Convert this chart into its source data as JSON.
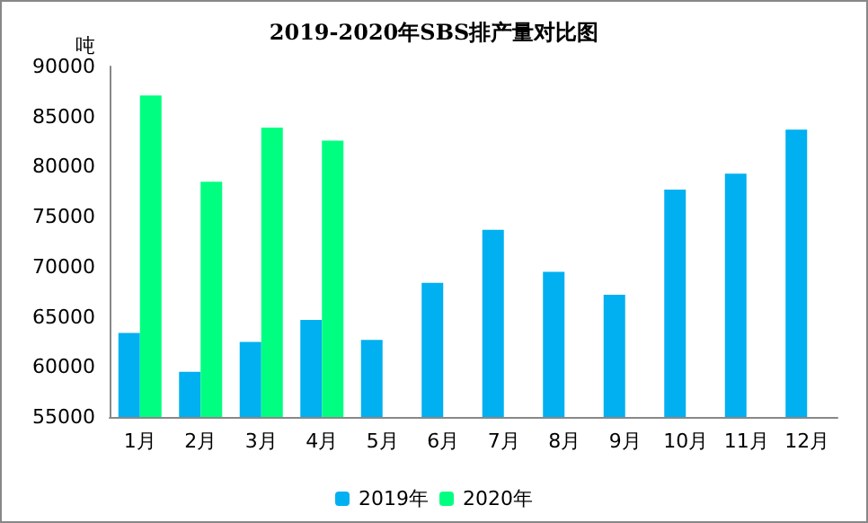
{
  "chart_data": {
    "type": "bar",
    "title": "2019-2020年SBS排产量对比图",
    "ylabel": "吨",
    "categories": [
      "1月",
      "2月",
      "3月",
      "4月",
      "5月",
      "6月",
      "7月",
      "8月",
      "9月",
      "10月",
      "11月",
      "12月"
    ],
    "series": [
      {
        "name": "2019年",
        "color": "#00b0f0",
        "values": [
          63400,
          59500,
          62500,
          64700,
          62700,
          68400,
          73700,
          69500,
          67200,
          77700,
          79300,
          83700
        ]
      },
      {
        "name": "2020年",
        "color": "#00ff80",
        "values": [
          87100,
          78500,
          83900,
          82600,
          null,
          null,
          null,
          null,
          null,
          null,
          null,
          null
        ]
      }
    ],
    "ylim": [
      55000,
      90000
    ],
    "yticks": [
      55000,
      60000,
      65000,
      70000,
      75000,
      80000,
      85000,
      90000
    ],
    "grid": false,
    "legend": "bottom"
  }
}
